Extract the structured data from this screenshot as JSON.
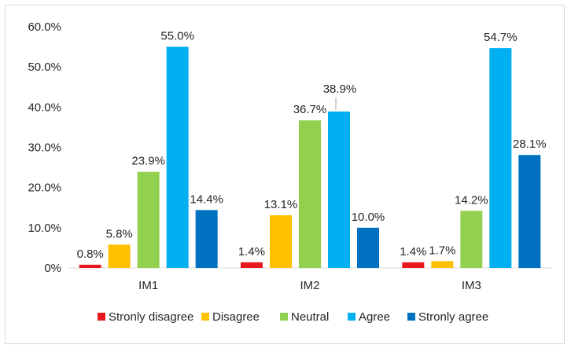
{
  "chart_data": {
    "type": "bar",
    "categories": [
      "IM1",
      "IM2",
      "IM3"
    ],
    "series": [
      {
        "name": "Stronly disagree",
        "color": "#e8191e",
        "values": [
          0.8,
          1.4,
          1.4
        ],
        "labels": [
          "0.8%",
          "1.4%",
          "1.4%"
        ]
      },
      {
        "name": "Disagree",
        "color": "#ffc000",
        "values": [
          5.8,
          13.1,
          1.7
        ],
        "labels": [
          "5.8%",
          "13.1%",
          "1.7%"
        ]
      },
      {
        "name": "Neutral",
        "color": "#92d050",
        "values": [
          23.9,
          36.7,
          14.2
        ],
        "labels": [
          "23.9%",
          "36.7%",
          "14.2%"
        ]
      },
      {
        "name": "Agree",
        "color": "#00b0f0",
        "values": [
          55.0,
          38.9,
          54.7
        ],
        "labels": [
          "55.0%",
          "38.9%",
          "54.7%"
        ]
      },
      {
        "name": "Stronly agree",
        "color": "#0070c0",
        "values": [
          14.4,
          10.0,
          28.1
        ],
        "labels": [
          "14.4%",
          "10.0%",
          "28.1%"
        ]
      }
    ],
    "ylim": [
      0,
      60
    ],
    "yticks": [
      0,
      10,
      20,
      30,
      40,
      50,
      60
    ],
    "ytick_labels": [
      "0%",
      "10.0%",
      "20.0%",
      "30.0%",
      "40.0%",
      "50.0%",
      "60.0%"
    ],
    "grid": false,
    "legend_position": "bottom",
    "title": "",
    "xlabel": "",
    "ylabel": ""
  }
}
